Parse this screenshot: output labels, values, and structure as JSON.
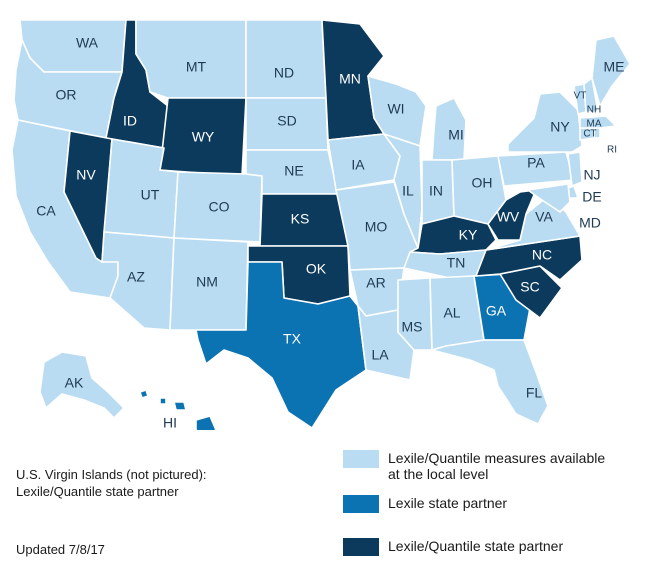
{
  "colors": {
    "local": "#b9dcf2",
    "lexile": "#0c73b3",
    "lq": "#0c3a5c",
    "label_light_bg": "#1f3a52",
    "label_dark_bg": "#ffffff"
  },
  "states": [
    {
      "id": "WA",
      "label": "WA",
      "category": "local"
    },
    {
      "id": "OR",
      "label": "OR",
      "category": "local"
    },
    {
      "id": "CA",
      "label": "CA",
      "category": "local"
    },
    {
      "id": "ID",
      "label": "ID",
      "category": "lq"
    },
    {
      "id": "NV",
      "label": "NV",
      "category": "lq"
    },
    {
      "id": "MT",
      "label": "MT",
      "category": "local"
    },
    {
      "id": "WY",
      "label": "WY",
      "category": "lq"
    },
    {
      "id": "UT",
      "label": "UT",
      "category": "local"
    },
    {
      "id": "AZ",
      "label": "AZ",
      "category": "local"
    },
    {
      "id": "CO",
      "label": "CO",
      "category": "local"
    },
    {
      "id": "NM",
      "label": "NM",
      "category": "local"
    },
    {
      "id": "ND",
      "label": "ND",
      "category": "local"
    },
    {
      "id": "SD",
      "label": "SD",
      "category": "local"
    },
    {
      "id": "NE",
      "label": "NE",
      "category": "local"
    },
    {
      "id": "KS",
      "label": "KS",
      "category": "lq"
    },
    {
      "id": "OK",
      "label": "OK",
      "category": "lq"
    },
    {
      "id": "TX",
      "label": "TX",
      "category": "lexile"
    },
    {
      "id": "MN",
      "label": "MN",
      "category": "lq"
    },
    {
      "id": "IA",
      "label": "IA",
      "category": "local"
    },
    {
      "id": "MO",
      "label": "MO",
      "category": "local"
    },
    {
      "id": "AR",
      "label": "AR",
      "category": "local"
    },
    {
      "id": "LA",
      "label": "LA",
      "category": "local"
    },
    {
      "id": "WI",
      "label": "WI",
      "category": "local"
    },
    {
      "id": "IL",
      "label": "IL",
      "category": "local"
    },
    {
      "id": "MI",
      "label": "MI",
      "category": "local"
    },
    {
      "id": "IN",
      "label": "IN",
      "category": "local"
    },
    {
      "id": "OH",
      "label": "OH",
      "category": "local"
    },
    {
      "id": "KY",
      "label": "KY",
      "category": "lq"
    },
    {
      "id": "TN",
      "label": "TN",
      "category": "local"
    },
    {
      "id": "MS",
      "label": "MS",
      "category": "local"
    },
    {
      "id": "AL",
      "label": "AL",
      "category": "local"
    },
    {
      "id": "GA",
      "label": "GA",
      "category": "lexile"
    },
    {
      "id": "FL",
      "label": "FL",
      "category": "local"
    },
    {
      "id": "SC",
      "label": "SC",
      "category": "lq"
    },
    {
      "id": "NC",
      "label": "NC",
      "category": "lq"
    },
    {
      "id": "VA",
      "label": "VA",
      "category": "local"
    },
    {
      "id": "WV",
      "label": "WV",
      "category": "lq"
    },
    {
      "id": "PA",
      "label": "PA",
      "category": "local"
    },
    {
      "id": "NY",
      "label": "NY",
      "category": "local"
    },
    {
      "id": "NJ",
      "label": "NJ",
      "category": "local"
    },
    {
      "id": "DE",
      "label": "DE",
      "category": "local"
    },
    {
      "id": "MD",
      "label": "MD",
      "category": "local"
    },
    {
      "id": "CT",
      "label": "CT",
      "category": "local"
    },
    {
      "id": "RI",
      "label": "RI",
      "category": "local"
    },
    {
      "id": "MA",
      "label": "MA",
      "category": "local"
    },
    {
      "id": "VT",
      "label": "VT",
      "category": "local"
    },
    {
      "id": "NH",
      "label": "NH",
      "category": "local"
    },
    {
      "id": "ME",
      "label": "ME",
      "category": "local"
    },
    {
      "id": "AK",
      "label": "AK",
      "category": "local"
    },
    {
      "id": "HI",
      "label": "HI",
      "category": "lexile"
    }
  ],
  "notes": {
    "virgin_islands_line1": "U.S. Virgin Islands (not pictured):",
    "virgin_islands_line2": "Lexile/Quantile state partner",
    "updated": "Updated 7/8/17"
  },
  "legend": [
    {
      "category": "local",
      "line1": "Lexile/Quantile measures available",
      "line2": "at the local level"
    },
    {
      "category": "lexile",
      "line1": "Lexile state partner",
      "line2": ""
    },
    {
      "category": "lq",
      "line1": "Lexile/Quantile state partner",
      "line2": ""
    }
  ]
}
